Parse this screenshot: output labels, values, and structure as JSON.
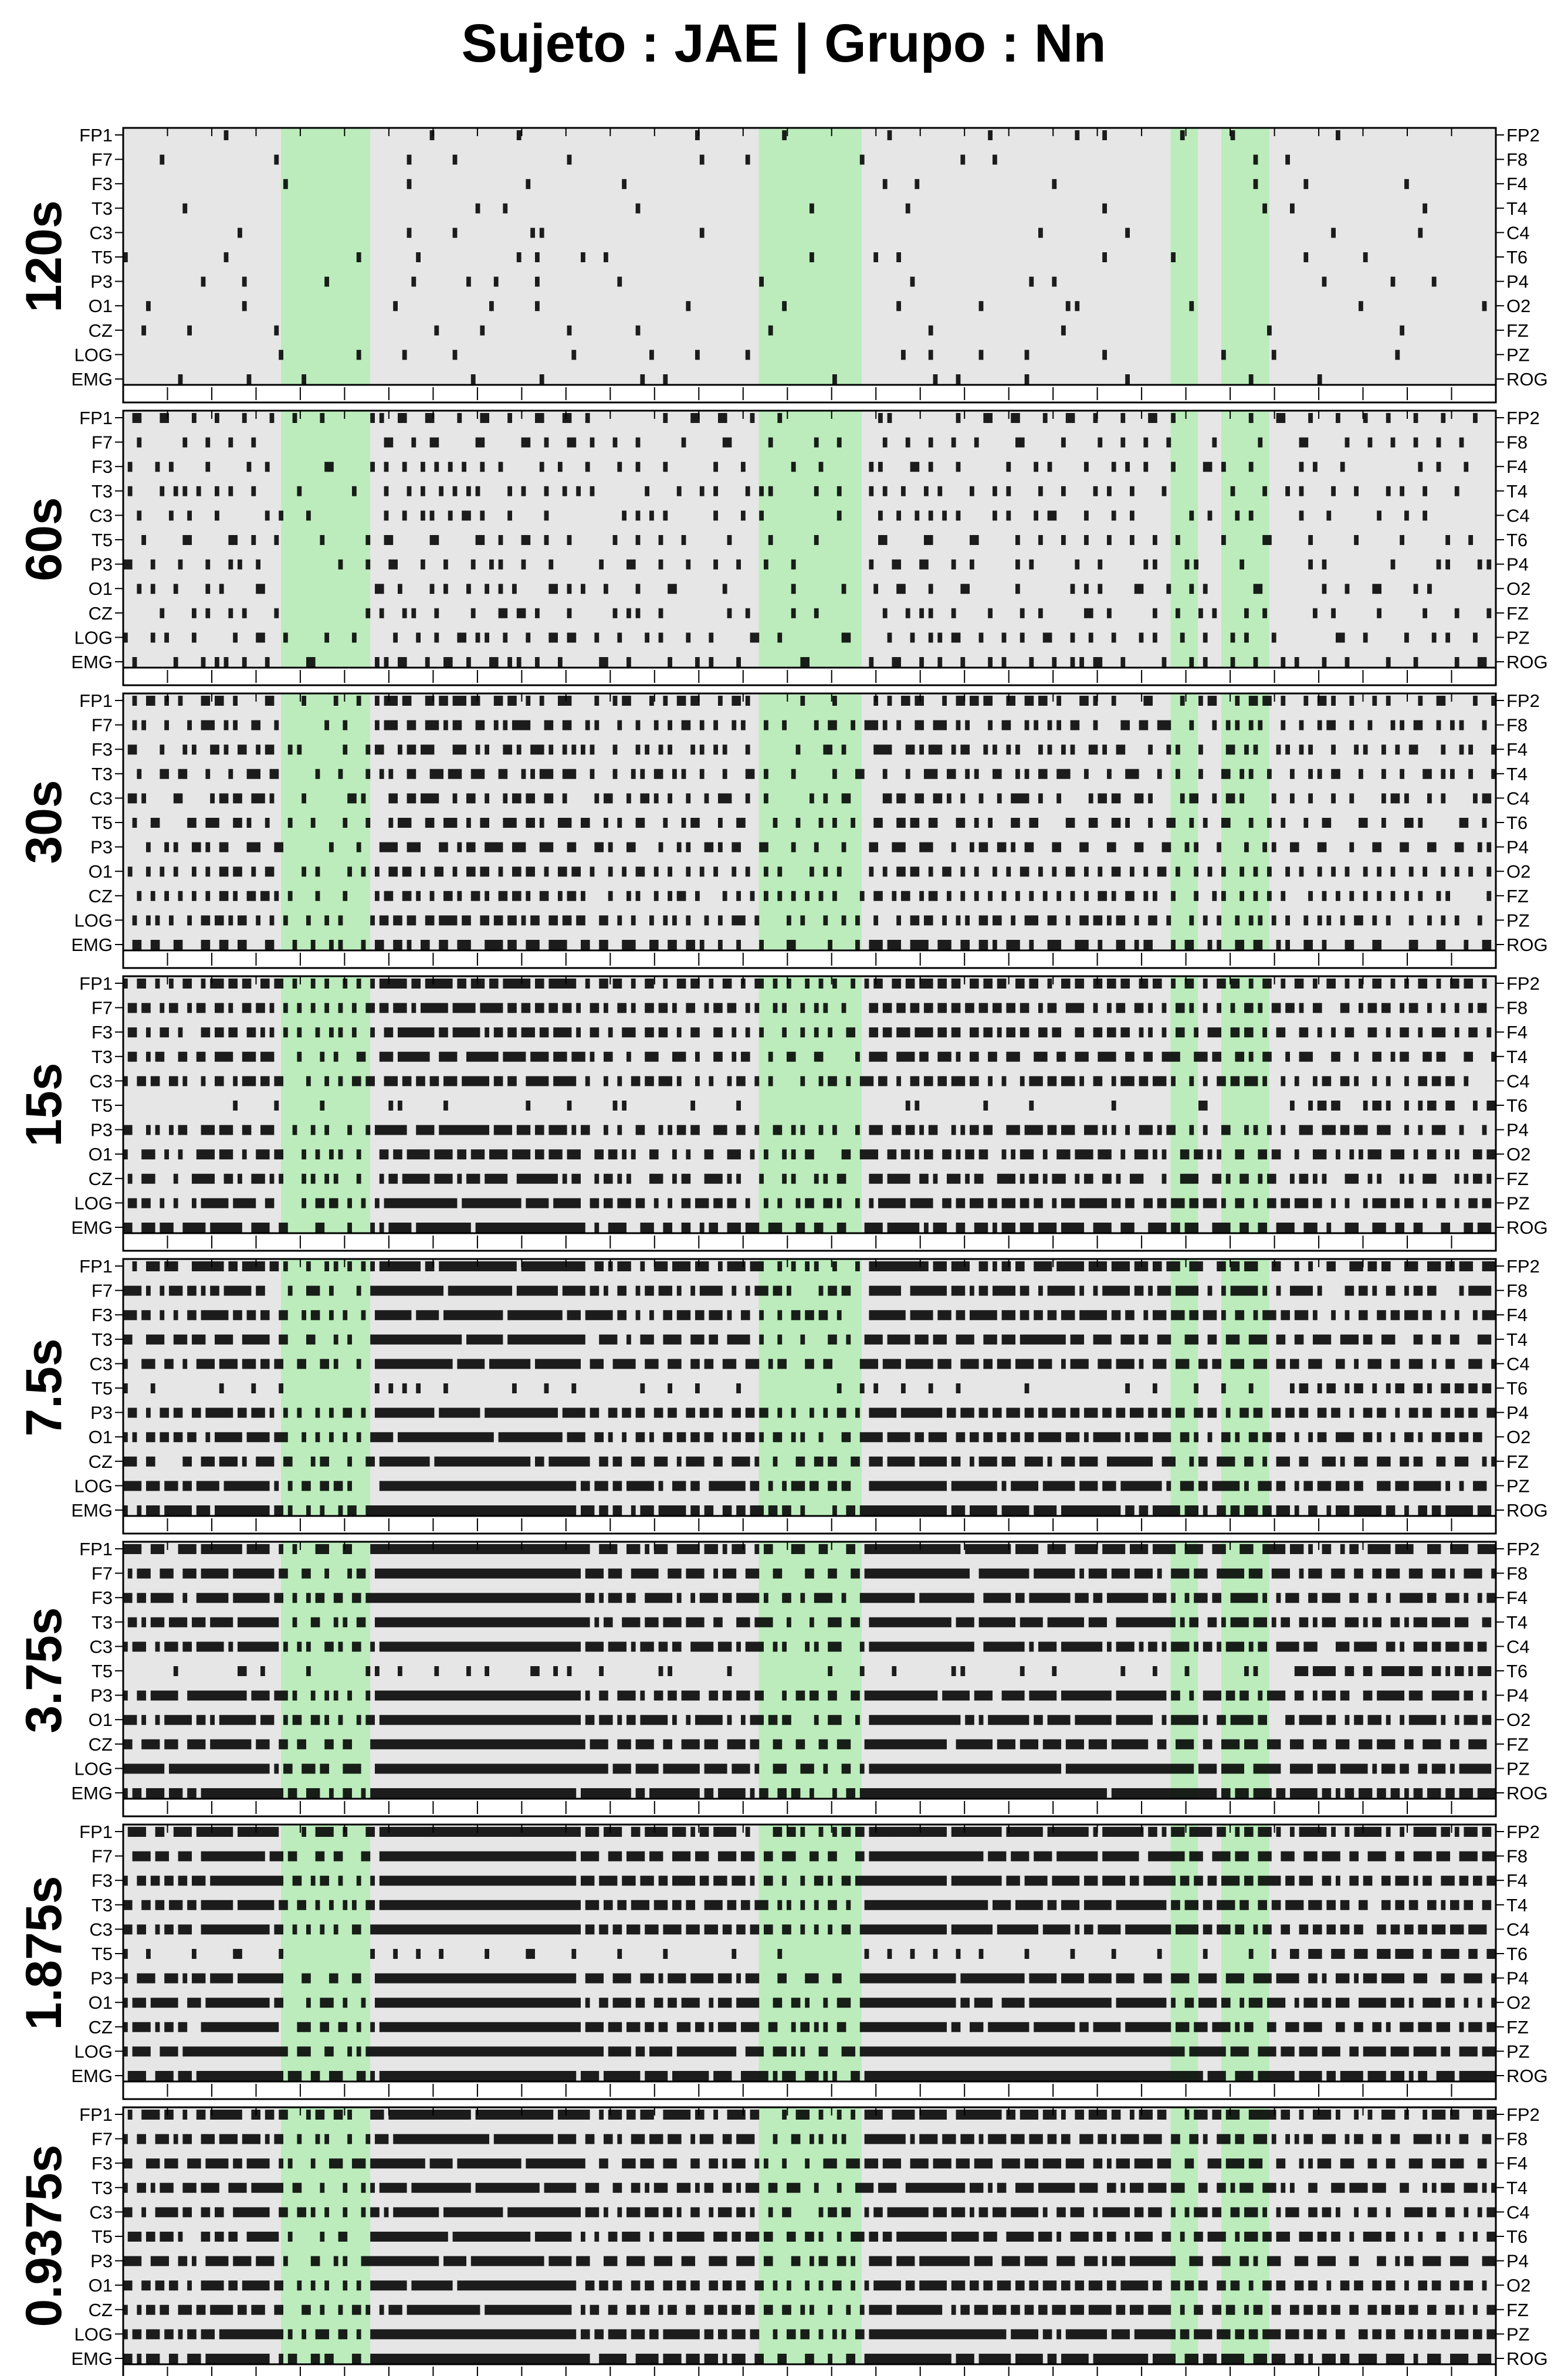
{
  "chart_data": {
    "type": "heatmap",
    "title": "Sujeto : JAE  | Grupo :  Nn",
    "left_channels": [
      "FP1",
      "F7",
      "F3",
      "T3",
      "C3",
      "T5",
      "P3",
      "O1",
      "CZ",
      "LOG",
      "EMG"
    ],
    "right_channels": [
      "FP2",
      "F8",
      "F4",
      "T4",
      "C4",
      "T6",
      "P4",
      "O2",
      "FZ",
      "PZ",
      "ROG"
    ],
    "n_bins": 300,
    "panels": [
      {
        "label": "120s",
        "density": 0.04
      },
      {
        "label": "60s",
        "density": 0.17
      },
      {
        "label": "30s",
        "density": 0.34
      },
      {
        "label": "15s",
        "density": 0.5
      },
      {
        "label": "7.5s",
        "density": 0.62
      },
      {
        "label": "3.75s",
        "density": 0.72
      },
      {
        "label": "1.875s",
        "density": 0.74
      },
      {
        "label": "0.9375s",
        "density": 0.62
      }
    ],
    "highlight_bands": [
      [
        0.115,
        0.18
      ],
      [
        0.463,
        0.538
      ],
      [
        0.763,
        0.783
      ],
      [
        0.8,
        0.835
      ]
    ],
    "colors": {
      "background": "#e6e6e6",
      "highlight": "#bcecbc",
      "mark": "#000000",
      "frame": "#000000"
    }
  }
}
